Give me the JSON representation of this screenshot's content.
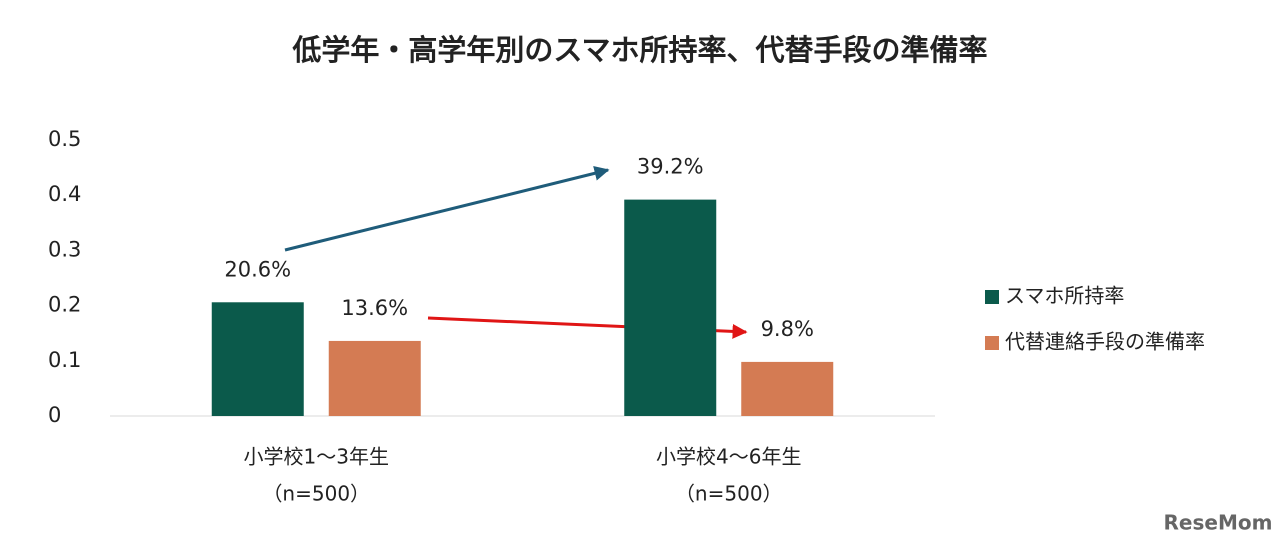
{
  "chart_data": {
    "type": "bar",
    "title": "低学年・高学年別のスマホ所持率、代替手段の準備率",
    "categories": [
      [
        "小学校1～3年生",
        "（n=500）"
      ],
      [
        "小学校4～6年生",
        "（n=500）"
      ]
    ],
    "series": [
      {
        "name": "スマホ所持率",
        "color": "#0b5a4b",
        "values": [
          0.206,
          0.392
        ],
        "value_labels": [
          "20.6%",
          "39.2%"
        ]
      },
      {
        "name": "代替連絡手段の準備率",
        "color": "#d47b53",
        "values": [
          0.136,
          0.098
        ],
        "value_labels": [
          "13.6%",
          "9.8%"
        ]
      }
    ],
    "ylim": [
      0,
      0.5
    ],
    "yticks": [
      0,
      0.1,
      0.2,
      0.3,
      0.4,
      0.5
    ],
    "grid": false,
    "legend": "right",
    "watermark": "ReseMom"
  }
}
